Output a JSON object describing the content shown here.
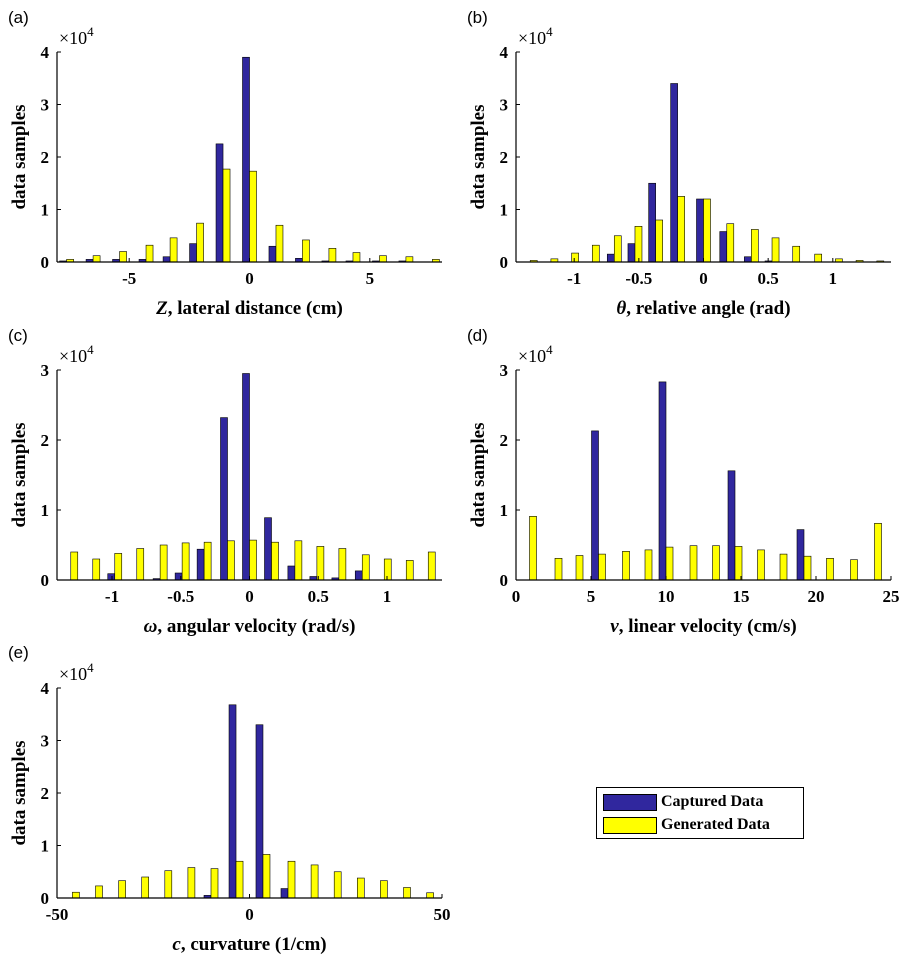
{
  "colors": {
    "captured": "#30279e",
    "generated": "#ffff00",
    "axis": "#000000"
  },
  "legend": {
    "placement": "bottom-right (empty 6th panel slot)",
    "entries": [
      {
        "label": "Captured Data",
        "color": "#30279e"
      },
      {
        "label": "Generated Data",
        "color": "#ffff00"
      }
    ]
  },
  "chart_data": [
    {
      "panel": "(a)",
      "type": "bar",
      "exponent": "×10",
      "exponent_power": "4",
      "xlabel_symbol": "Z",
      "xlabel": ", lateral distance (cm)",
      "ylabel": "data samples",
      "xlim": [
        -8,
        8
      ],
      "ylim": [
        0,
        4
      ],
      "xticks": [
        -5,
        0,
        5
      ],
      "xtick_labels": [
        "-5",
        "0",
        "5"
      ],
      "yticks": [
        0,
        1,
        2,
        3,
        4
      ],
      "ytick_labels": [
        "0",
        "1",
        "2",
        "3",
        "4"
      ],
      "x": [
        -7.6,
        -6.5,
        -5.4,
        -4.3,
        -3.3,
        -2.2,
        -1.1,
        0,
        1.1,
        2.2,
        3.3,
        4.3,
        5.4,
        6.5,
        7.6
      ],
      "series": [
        {
          "name": "Captured Data",
          "values": [
            0.02,
            0.05,
            0.05,
            0.05,
            0.1,
            0.35,
            2.25,
            3.9,
            0.3,
            0.07,
            0.02,
            0.02,
            0.02,
            0.02,
            0
          ]
        },
        {
          "name": "Generated Data",
          "values": [
            0.05,
            0.12,
            0.2,
            0.32,
            0.46,
            0.74,
            1.77,
            1.73,
            0.7,
            0.42,
            0.26,
            0.18,
            0.12,
            0.1,
            0.05
          ]
        }
      ]
    },
    {
      "panel": "(b)",
      "type": "bar",
      "exponent": "×10",
      "exponent_power": "4",
      "xlabel_symbol": "θ",
      "xlabel": ", relative angle (rad)",
      "ylabel": "data samples",
      "xlim": [
        -1.45,
        1.45
      ],
      "ylim": [
        0,
        4
      ],
      "xticks": [
        -1,
        -0.5,
        0,
        0.5,
        1
      ],
      "xtick_labels": [
        "-1",
        "-0.5",
        "0",
        "0.5",
        "1"
      ],
      "yticks": [
        0,
        1,
        2,
        3,
        4
      ],
      "ytick_labels": [
        "0",
        "1",
        "2",
        "3",
        "4"
      ],
      "x": [
        -1.34,
        -1.18,
        -1.02,
        -0.86,
        -0.69,
        -0.53,
        -0.37,
        -0.2,
        0,
        0.18,
        0.37,
        0.53,
        0.69,
        0.86,
        1.02,
        1.18,
        1.34
      ],
      "series": [
        {
          "name": "Captured Data",
          "values": [
            0,
            0,
            0,
            0,
            0.15,
            0.35,
            1.5,
            3.4,
            1.2,
            0.58,
            0.1,
            0.02,
            0,
            0,
            0,
            0,
            0
          ]
        },
        {
          "name": "Generated Data",
          "values": [
            0.03,
            0.06,
            0.17,
            0.32,
            0.5,
            0.68,
            0.8,
            1.25,
            1.2,
            0.73,
            0.62,
            0.46,
            0.3,
            0.15,
            0.06,
            0.03,
            0.02
          ]
        }
      ]
    },
    {
      "panel": "(c)",
      "type": "bar",
      "exponent": "×10",
      "exponent_power": "4",
      "xlabel_symbol": "ω",
      "xlabel": ", angular velocity (rad/s)",
      "ylabel": "data samples",
      "xlim": [
        -1.4,
        1.4
      ],
      "ylim": [
        0,
        3
      ],
      "xticks": [
        -1,
        -0.5,
        0,
        0.5,
        1
      ],
      "xtick_labels": [
        "-1",
        "-0.5",
        "0",
        "0.5",
        "1"
      ],
      "yticks": [
        0,
        1,
        2,
        3
      ],
      "ytick_labels": [
        "0",
        "1",
        "2",
        "3"
      ],
      "x": [
        -1.3,
        -1.14,
        -0.98,
        -0.82,
        -0.65,
        -0.49,
        -0.33,
        -0.16,
        0,
        0.16,
        0.33,
        0.49,
        0.65,
        0.82,
        0.98,
        1.14,
        1.3
      ],
      "series": [
        {
          "name": "Captured Data",
          "values": [
            0,
            0,
            0.09,
            0,
            0.02,
            0.1,
            0.44,
            2.32,
            2.95,
            0.89,
            0.2,
            0.05,
            0.03,
            0.13,
            0,
            0,
            0
          ]
        },
        {
          "name": "Generated Data",
          "values": [
            0.4,
            0.3,
            0.38,
            0.45,
            0.5,
            0.53,
            0.54,
            0.56,
            0.57,
            0.54,
            0.56,
            0.48,
            0.45,
            0.36,
            0.3,
            0.28,
            0.4
          ]
        }
      ]
    },
    {
      "panel": "(d)",
      "type": "bar",
      "exponent": "×10",
      "exponent_power": "4",
      "xlabel_symbol": "v",
      "xlabel": ", linear velocity (cm/s)",
      "ylabel": "data samples",
      "xlim": [
        0,
        25
      ],
      "ylim": [
        0,
        3
      ],
      "xticks": [
        0,
        5,
        10,
        15,
        20,
        25
      ],
      "xtick_labels": [
        "0",
        "5",
        "10",
        "15",
        "20",
        "25"
      ],
      "yticks": [
        0,
        1,
        2,
        3
      ],
      "ytick_labels": [
        "0",
        "1",
        "2",
        "3"
      ],
      "x": [
        0.9,
        2.6,
        4.0,
        5.5,
        7.1,
        8.6,
        10.0,
        11.6,
        13.1,
        14.6,
        16.1,
        17.6,
        19.2,
        20.7,
        22.3,
        23.9
      ],
      "series": [
        {
          "name": "Captured Data",
          "values": [
            0,
            0,
            0,
            2.13,
            0,
            0,
            2.83,
            0,
            0,
            1.56,
            0,
            0,
            0.72,
            0,
            0,
            0
          ]
        },
        {
          "name": "Generated Data",
          "values": [
            0.91,
            0.31,
            0.35,
            0.37,
            0.41,
            0.43,
            0.47,
            0.49,
            0.49,
            0.48,
            0.43,
            0.37,
            0.34,
            0.31,
            0.29,
            0.81
          ]
        }
      ]
    },
    {
      "panel": "(e)",
      "type": "bar",
      "exponent": "×10",
      "exponent_power": "4",
      "xlabel_symbol": "c",
      "xlabel": ", curvature (1/cm)",
      "ylabel": "data samples",
      "xlim": [
        -50,
        50
      ],
      "ylim": [
        0,
        4
      ],
      "xticks": [
        -50,
        0,
        50
      ],
      "xtick_labels": [
        "-50",
        "0",
        "50"
      ],
      "yticks": [
        0,
        1,
        2,
        3,
        4
      ],
      "ytick_labels": [
        "0",
        "1",
        "2",
        "3",
        "4"
      ],
      "x": [
        -46,
        -40,
        -34,
        -28,
        -22,
        -16,
        -10,
        -3.5,
        3.5,
        10,
        16,
        22,
        28,
        34,
        40,
        46
      ],
      "series": [
        {
          "name": "Captured Data",
          "values": [
            0,
            0,
            0,
            0,
            0,
            0,
            0.05,
            3.68,
            3.3,
            0.18,
            0,
            0,
            0,
            0,
            0,
            0
          ]
        },
        {
          "name": "Generated Data",
          "values": [
            0.11,
            0.23,
            0.33,
            0.4,
            0.52,
            0.58,
            0.56,
            0.7,
            0.83,
            0.7,
            0.63,
            0.5,
            0.38,
            0.33,
            0.2,
            0.1
          ]
        }
      ]
    }
  ]
}
